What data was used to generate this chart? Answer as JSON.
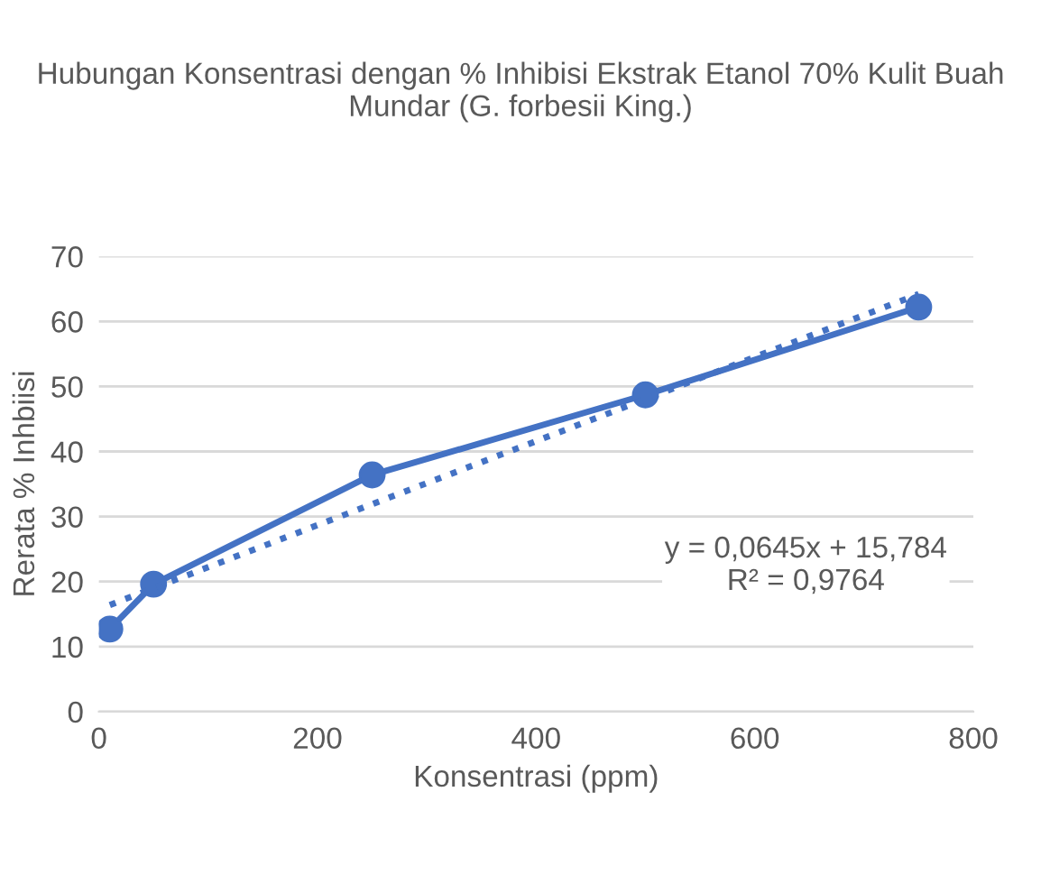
{
  "chart_data": {
    "type": "line",
    "title": "Hubungan Konsentrasi dengan % Inhibisi Ekstrak Etanol 70% Kulit Buah Mundar (G. forbesii King.)",
    "xlabel": "Konsentrasi (ppm)",
    "ylabel": "Rerata % Inhbiisi",
    "series": [
      {
        "color": "#4472c4",
        "x": [
          10,
          50,
          250,
          500,
          750
        ],
        "values": [
          12.7,
          19.6,
          36.4,
          48.7,
          62.2
        ],
        "marker": "circle",
        "line_style": "solid"
      },
      {
        "color": "#4472c4",
        "x": [
          10,
          750
        ],
        "values": [
          16.4,
          64.2
        ],
        "marker": "none",
        "line_style": "dotted"
      }
    ],
    "xlim": [
      0,
      800
    ],
    "xticks": [
      0,
      200,
      400,
      600,
      800
    ],
    "ylim": [
      0,
      70
    ],
    "yticks": [
      0,
      10,
      20,
      30,
      40,
      50,
      60,
      70
    ],
    "grid": "y",
    "legend": false,
    "annotations": [
      "y = 0,0645x + 15,784",
      "R² = 0,9764"
    ]
  }
}
